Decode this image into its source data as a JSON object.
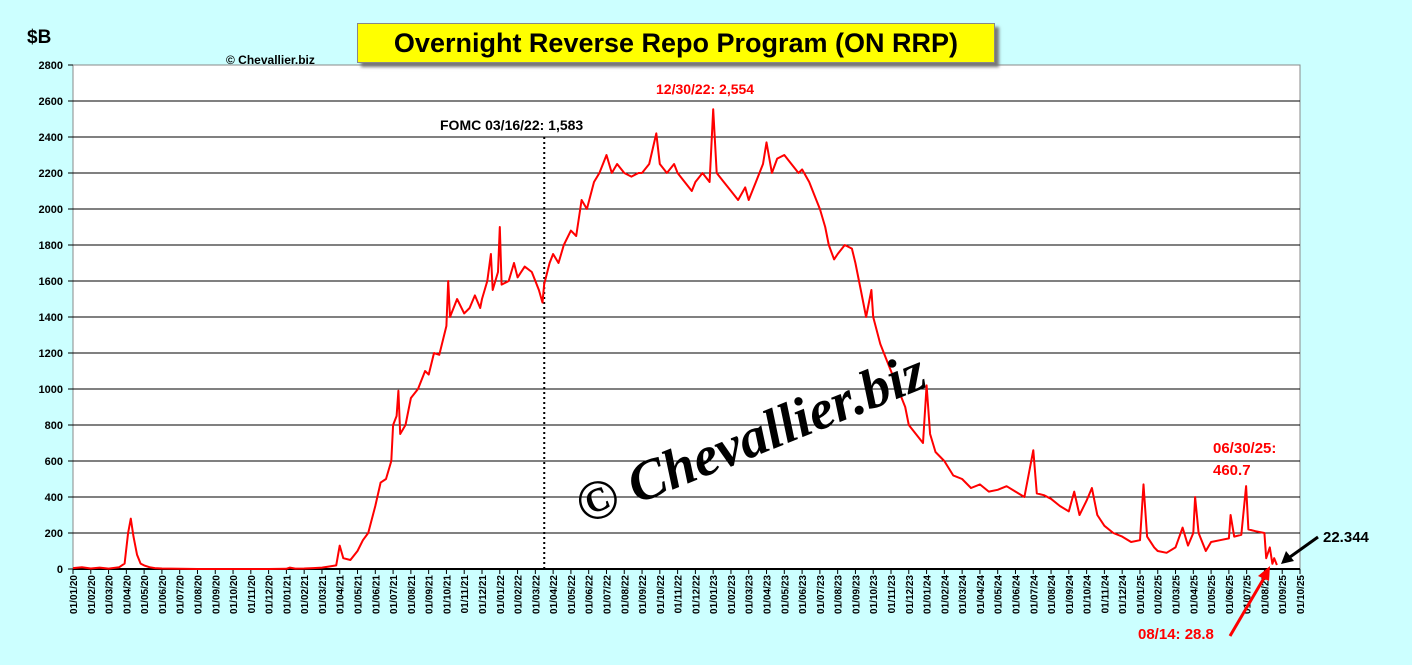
{
  "chart_data": {
    "type": "line",
    "title": "Overnight Reverse Repo Program (ON RRP)",
    "ylabel": "$B",
    "xlabel": "",
    "ylim": [
      0,
      2800
    ],
    "yticks": [
      0,
      200,
      400,
      600,
      800,
      1000,
      1200,
      1400,
      1600,
      1800,
      2000,
      2200,
      2400,
      2600,
      2800
    ],
    "grid": true,
    "xtick_labels": [
      "01/01/20",
      "01/02/20",
      "01/03/20",
      "01/04/20",
      "01/05/20",
      "01/06/20",
      "01/07/20",
      "01/08/20",
      "01/09/20",
      "01/10/20",
      "01/11/20",
      "01/12/20",
      "01/01/21",
      "01/02/21",
      "01/03/21",
      "01/04/21",
      "01/05/21",
      "01/06/21",
      "01/07/21",
      "01/08/21",
      "01/09/21",
      "01/10/21",
      "01/11/21",
      "01/12/21",
      "01/01/22",
      "01/02/22",
      "01/03/22",
      "01/04/22",
      "01/05/22",
      "01/06/22",
      "01/07/22",
      "01/08/22",
      "01/09/22",
      "01/10/22",
      "01/11/22",
      "01/12/22",
      "01/01/23",
      "01/02/23",
      "01/03/23",
      "01/04/23",
      "01/05/23",
      "01/06/23",
      "01/07/23",
      "01/08/23",
      "01/09/23",
      "01/10/23",
      "01/11/23",
      "01/12/23",
      "01/01/24",
      "01/02/24",
      "01/03/24",
      "01/04/24",
      "01/05/24",
      "01/06/24",
      "01/07/24",
      "01/08/24",
      "01/09/24",
      "01/10/24",
      "01/11/24",
      "01/12/24",
      "01/01/25",
      "01/02/25",
      "01/03/25",
      "01/04/25",
      "01/05/25",
      "01/06/25",
      "01/07/25",
      "01/08/25",
      "01/09/25",
      "01/10/25"
    ],
    "x_unit": "months since 01/01/20",
    "series": [
      {
        "name": "ON RRP",
        "color": "#ff0000",
        "points": [
          [
            0,
            5
          ],
          [
            0.5,
            10
          ],
          [
            1,
            3
          ],
          [
            1.5,
            8
          ],
          [
            2,
            2
          ],
          [
            2.6,
            10
          ],
          [
            2.9,
            30
          ],
          [
            3.1,
            200
          ],
          [
            3.25,
            280
          ],
          [
            3.4,
            180
          ],
          [
            3.6,
            80
          ],
          [
            3.8,
            30
          ],
          [
            4,
            20
          ],
          [
            4.3,
            10
          ],
          [
            4.6,
            5
          ],
          [
            5,
            3
          ],
          [
            6,
            1
          ],
          [
            7,
            0
          ],
          [
            8,
            0
          ],
          [
            9,
            0
          ],
          [
            10,
            0
          ],
          [
            11,
            0
          ],
          [
            12,
            1
          ],
          [
            12.2,
            8
          ],
          [
            12.5,
            2
          ],
          [
            13,
            3
          ],
          [
            13.5,
            5
          ],
          [
            14,
            8
          ],
          [
            14.5,
            15
          ],
          [
            14.8,
            20
          ],
          [
            15,
            130
          ],
          [
            15.2,
            60
          ],
          [
            15.6,
            50
          ],
          [
            16,
            100
          ],
          [
            16.3,
            160
          ],
          [
            16.6,
            200
          ],
          [
            17,
            350
          ],
          [
            17.3,
            480
          ],
          [
            17.6,
            500
          ],
          [
            17.9,
            600
          ],
          [
            18,
            800
          ],
          [
            18.2,
            850
          ],
          [
            18.3,
            990
          ],
          [
            18.4,
            750
          ],
          [
            18.7,
            800
          ],
          [
            19,
            950
          ],
          [
            19.4,
            1000
          ],
          [
            19.8,
            1100
          ],
          [
            20,
            1080
          ],
          [
            20.3,
            1200
          ],
          [
            20.6,
            1190
          ],
          [
            21,
            1350
          ],
          [
            21.1,
            1600
          ],
          [
            21.2,
            1400
          ],
          [
            21.6,
            1500
          ],
          [
            22,
            1420
          ],
          [
            22.3,
            1450
          ],
          [
            22.6,
            1520
          ],
          [
            22.9,
            1450
          ],
          [
            23,
            1500
          ],
          [
            23.3,
            1600
          ],
          [
            23.5,
            1750
          ],
          [
            23.6,
            1550
          ],
          [
            23.9,
            1650
          ],
          [
            24,
            1900
          ],
          [
            24.1,
            1580
          ],
          [
            24.5,
            1600
          ],
          [
            24.8,
            1700
          ],
          [
            25,
            1620
          ],
          [
            25.4,
            1680
          ],
          [
            25.8,
            1650
          ],
          [
            26.2,
            1550
          ],
          [
            26.4,
            1480
          ],
          [
            26.5,
            1583
          ],
          [
            26.8,
            1700
          ],
          [
            27,
            1750
          ],
          [
            27.3,
            1700
          ],
          [
            27.6,
            1800
          ],
          [
            28,
            1880
          ],
          [
            28.3,
            1850
          ],
          [
            28.6,
            2050
          ],
          [
            28.9,
            2000
          ],
          [
            29.3,
            2150
          ],
          [
            29.6,
            2200
          ],
          [
            30,
            2300
          ],
          [
            30.3,
            2200
          ],
          [
            30.6,
            2250
          ],
          [
            31,
            2200
          ],
          [
            31.4,
            2180
          ],
          [
            31.8,
            2200
          ],
          [
            32,
            2200
          ],
          [
            32.4,
            2250
          ],
          [
            32.8,
            2420
          ],
          [
            33,
            2250
          ],
          [
            33.4,
            2200
          ],
          [
            33.8,
            2250
          ],
          [
            34,
            2200
          ],
          [
            34.4,
            2150
          ],
          [
            34.8,
            2100
          ],
          [
            35,
            2150
          ],
          [
            35.4,
            2200
          ],
          [
            35.8,
            2150
          ],
          [
            36,
            2554
          ],
          [
            36.2,
            2200
          ],
          [
            36.6,
            2150
          ],
          [
            37,
            2100
          ],
          [
            37.4,
            2050
          ],
          [
            37.8,
            2120
          ],
          [
            38,
            2050
          ],
          [
            38.4,
            2150
          ],
          [
            38.8,
            2250
          ],
          [
            39,
            2370
          ],
          [
            39.3,
            2200
          ],
          [
            39.6,
            2280
          ],
          [
            40,
            2300
          ],
          [
            40.4,
            2250
          ],
          [
            40.8,
            2200
          ],
          [
            41,
            2220
          ],
          [
            41.4,
            2150
          ],
          [
            41.8,
            2050
          ],
          [
            42,
            2000
          ],
          [
            42.3,
            1900
          ],
          [
            42.5,
            1800
          ],
          [
            42.8,
            1720
          ],
          [
            43,
            1750
          ],
          [
            43.4,
            1800
          ],
          [
            43.8,
            1780
          ],
          [
            44,
            1700
          ],
          [
            44.3,
            1550
          ],
          [
            44.6,
            1400
          ],
          [
            44.9,
            1550
          ],
          [
            45,
            1400
          ],
          [
            45.4,
            1250
          ],
          [
            45.8,
            1150
          ],
          [
            46,
            1100
          ],
          [
            46.4,
            1000
          ],
          [
            46.8,
            900
          ],
          [
            47,
            800
          ],
          [
            47.4,
            750
          ],
          [
            47.8,
            700
          ],
          [
            48,
            1020
          ],
          [
            48.2,
            750
          ],
          [
            48.5,
            650
          ],
          [
            49,
            600
          ],
          [
            49.5,
            520
          ],
          [
            50,
            500
          ],
          [
            50.5,
            450
          ],
          [
            51,
            470
          ],
          [
            51.5,
            430
          ],
          [
            52,
            440
          ],
          [
            52.5,
            460
          ],
          [
            53,
            430
          ],
          [
            53.5,
            400
          ],
          [
            54,
            660
          ],
          [
            54.2,
            420
          ],
          [
            54.6,
            410
          ],
          [
            55,
            390
          ],
          [
            55.5,
            350
          ],
          [
            56,
            320
          ],
          [
            56.3,
            430
          ],
          [
            56.6,
            300
          ],
          [
            57,
            380
          ],
          [
            57.3,
            450
          ],
          [
            57.6,
            300
          ],
          [
            58,
            240
          ],
          [
            58.5,
            200
          ],
          [
            59,
            180
          ],
          [
            59.5,
            150
          ],
          [
            60,
            160
          ],
          [
            60.2,
            470
          ],
          [
            60.4,
            180
          ],
          [
            60.8,
            120
          ],
          [
            61,
            100
          ],
          [
            61.5,
            90
          ],
          [
            62,
            120
          ],
          [
            62.4,
            230
          ],
          [
            62.7,
            130
          ],
          [
            63,
            200
          ],
          [
            63.1,
            400
          ],
          [
            63.3,
            200
          ],
          [
            63.7,
            100
          ],
          [
            64,
            150
          ],
          [
            64.5,
            160
          ],
          [
            65,
            170
          ],
          [
            65.1,
            300
          ],
          [
            65.3,
            180
          ],
          [
            65.7,
            190
          ],
          [
            65.97,
            460.7
          ],
          [
            66.1,
            220
          ],
          [
            66.5,
            210
          ],
          [
            67,
            200
          ],
          [
            67.1,
            60
          ],
          [
            67.3,
            120
          ],
          [
            67.45,
            28.8
          ],
          [
            67.55,
            60
          ],
          [
            67.7,
            22.344
          ]
        ]
      }
    ],
    "annotations": {
      "fomc": "FOMC 03/16/22: 1,583",
      "fomc_x": 26.5,
      "peak": "12/30/22: 2,554",
      "jun30_line1": "06/30/25:",
      "jun30_line2": "460.7",
      "latest": "22.344",
      "aug14": "08/14: 28.8",
      "copyright_small": "© Chevallier.biz",
      "watermark": "© Chevallier.biz"
    }
  }
}
